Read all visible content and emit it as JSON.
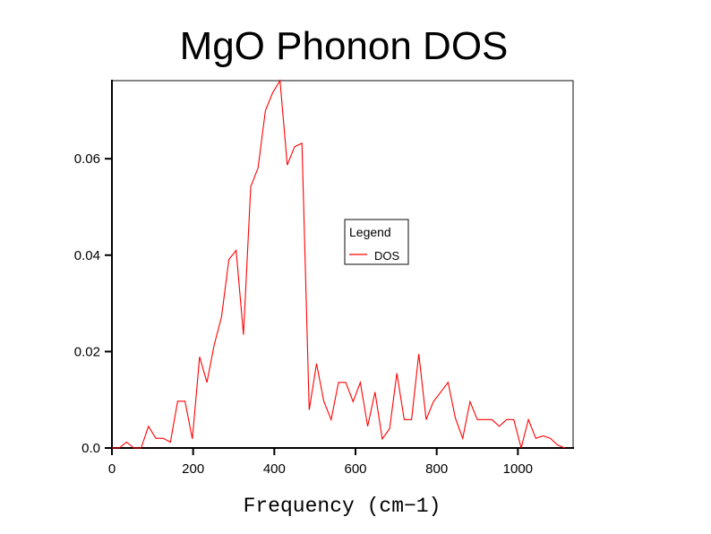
{
  "chart_data": {
    "type": "line",
    "title": "MgO Phonon DOS",
    "xlabel": "Frequency (cm−1)",
    "ylabel": "",
    "xlim": [
      0,
      1136
    ],
    "ylim": [
      0,
      0.0762
    ],
    "xticks": [
      0,
      200,
      400,
      600,
      800,
      1000
    ],
    "xtick_labels": [
      "0",
      "200",
      "400",
      "600",
      "800",
      "1000"
    ],
    "yticks": [
      0,
      0.02,
      0.04,
      0.06
    ],
    "ytick_labels": [
      "0.0",
      "0.02",
      "0.04",
      "0.06"
    ],
    "grid": false,
    "legend": {
      "title": "Legend",
      "placement": "center-right",
      "entries": [
        "DOS"
      ]
    },
    "series": [
      {
        "name": "DOS",
        "color": "#ff0000",
        "x": [
          0,
          18,
          36,
          54,
          72,
          90,
          108,
          126,
          144,
          162,
          180,
          198,
          216,
          234,
          252,
          270,
          288,
          306,
          324,
          342,
          360,
          378,
          396,
          414,
          432,
          450,
          468,
          486,
          504,
          522,
          540,
          558,
          576,
          594,
          612,
          630,
          648,
          666,
          684,
          702,
          720,
          738,
          756,
          774,
          792,
          810,
          828,
          846,
          864,
          882,
          900,
          918,
          936,
          954,
          972,
          990,
          1008,
          1026,
          1044,
          1062,
          1080,
          1098,
          1116
        ],
        "y": [
          0,
          0,
          0.0012,
          0,
          0,
          0.0045,
          0.002,
          0.002,
          0.0012,
          0.0097,
          0.0097,
          0.0019,
          0.0189,
          0.0136,
          0.0214,
          0.0272,
          0.0391,
          0.041,
          0.0235,
          0.0542,
          0.0581,
          0.07,
          0.0737,
          0.0762,
          0.0587,
          0.0625,
          0.0632,
          0.0079,
          0.0175,
          0.0097,
          0.0059,
          0.0136,
          0.0136,
          0.0096,
          0.0136,
          0.0045,
          0.0116,
          0.0019,
          0.004,
          0.0155,
          0.0059,
          0.0059,
          0.0195,
          0.0059,
          0.0096,
          0.0116,
          0.0136,
          0.0062,
          0.002,
          0.0096,
          0.0059,
          0.0059,
          0.0059,
          0.0045,
          0.0059,
          0.0059,
          0,
          0.0059,
          0.002,
          0.0025,
          0.002,
          0.0006,
          0
        ]
      }
    ]
  }
}
